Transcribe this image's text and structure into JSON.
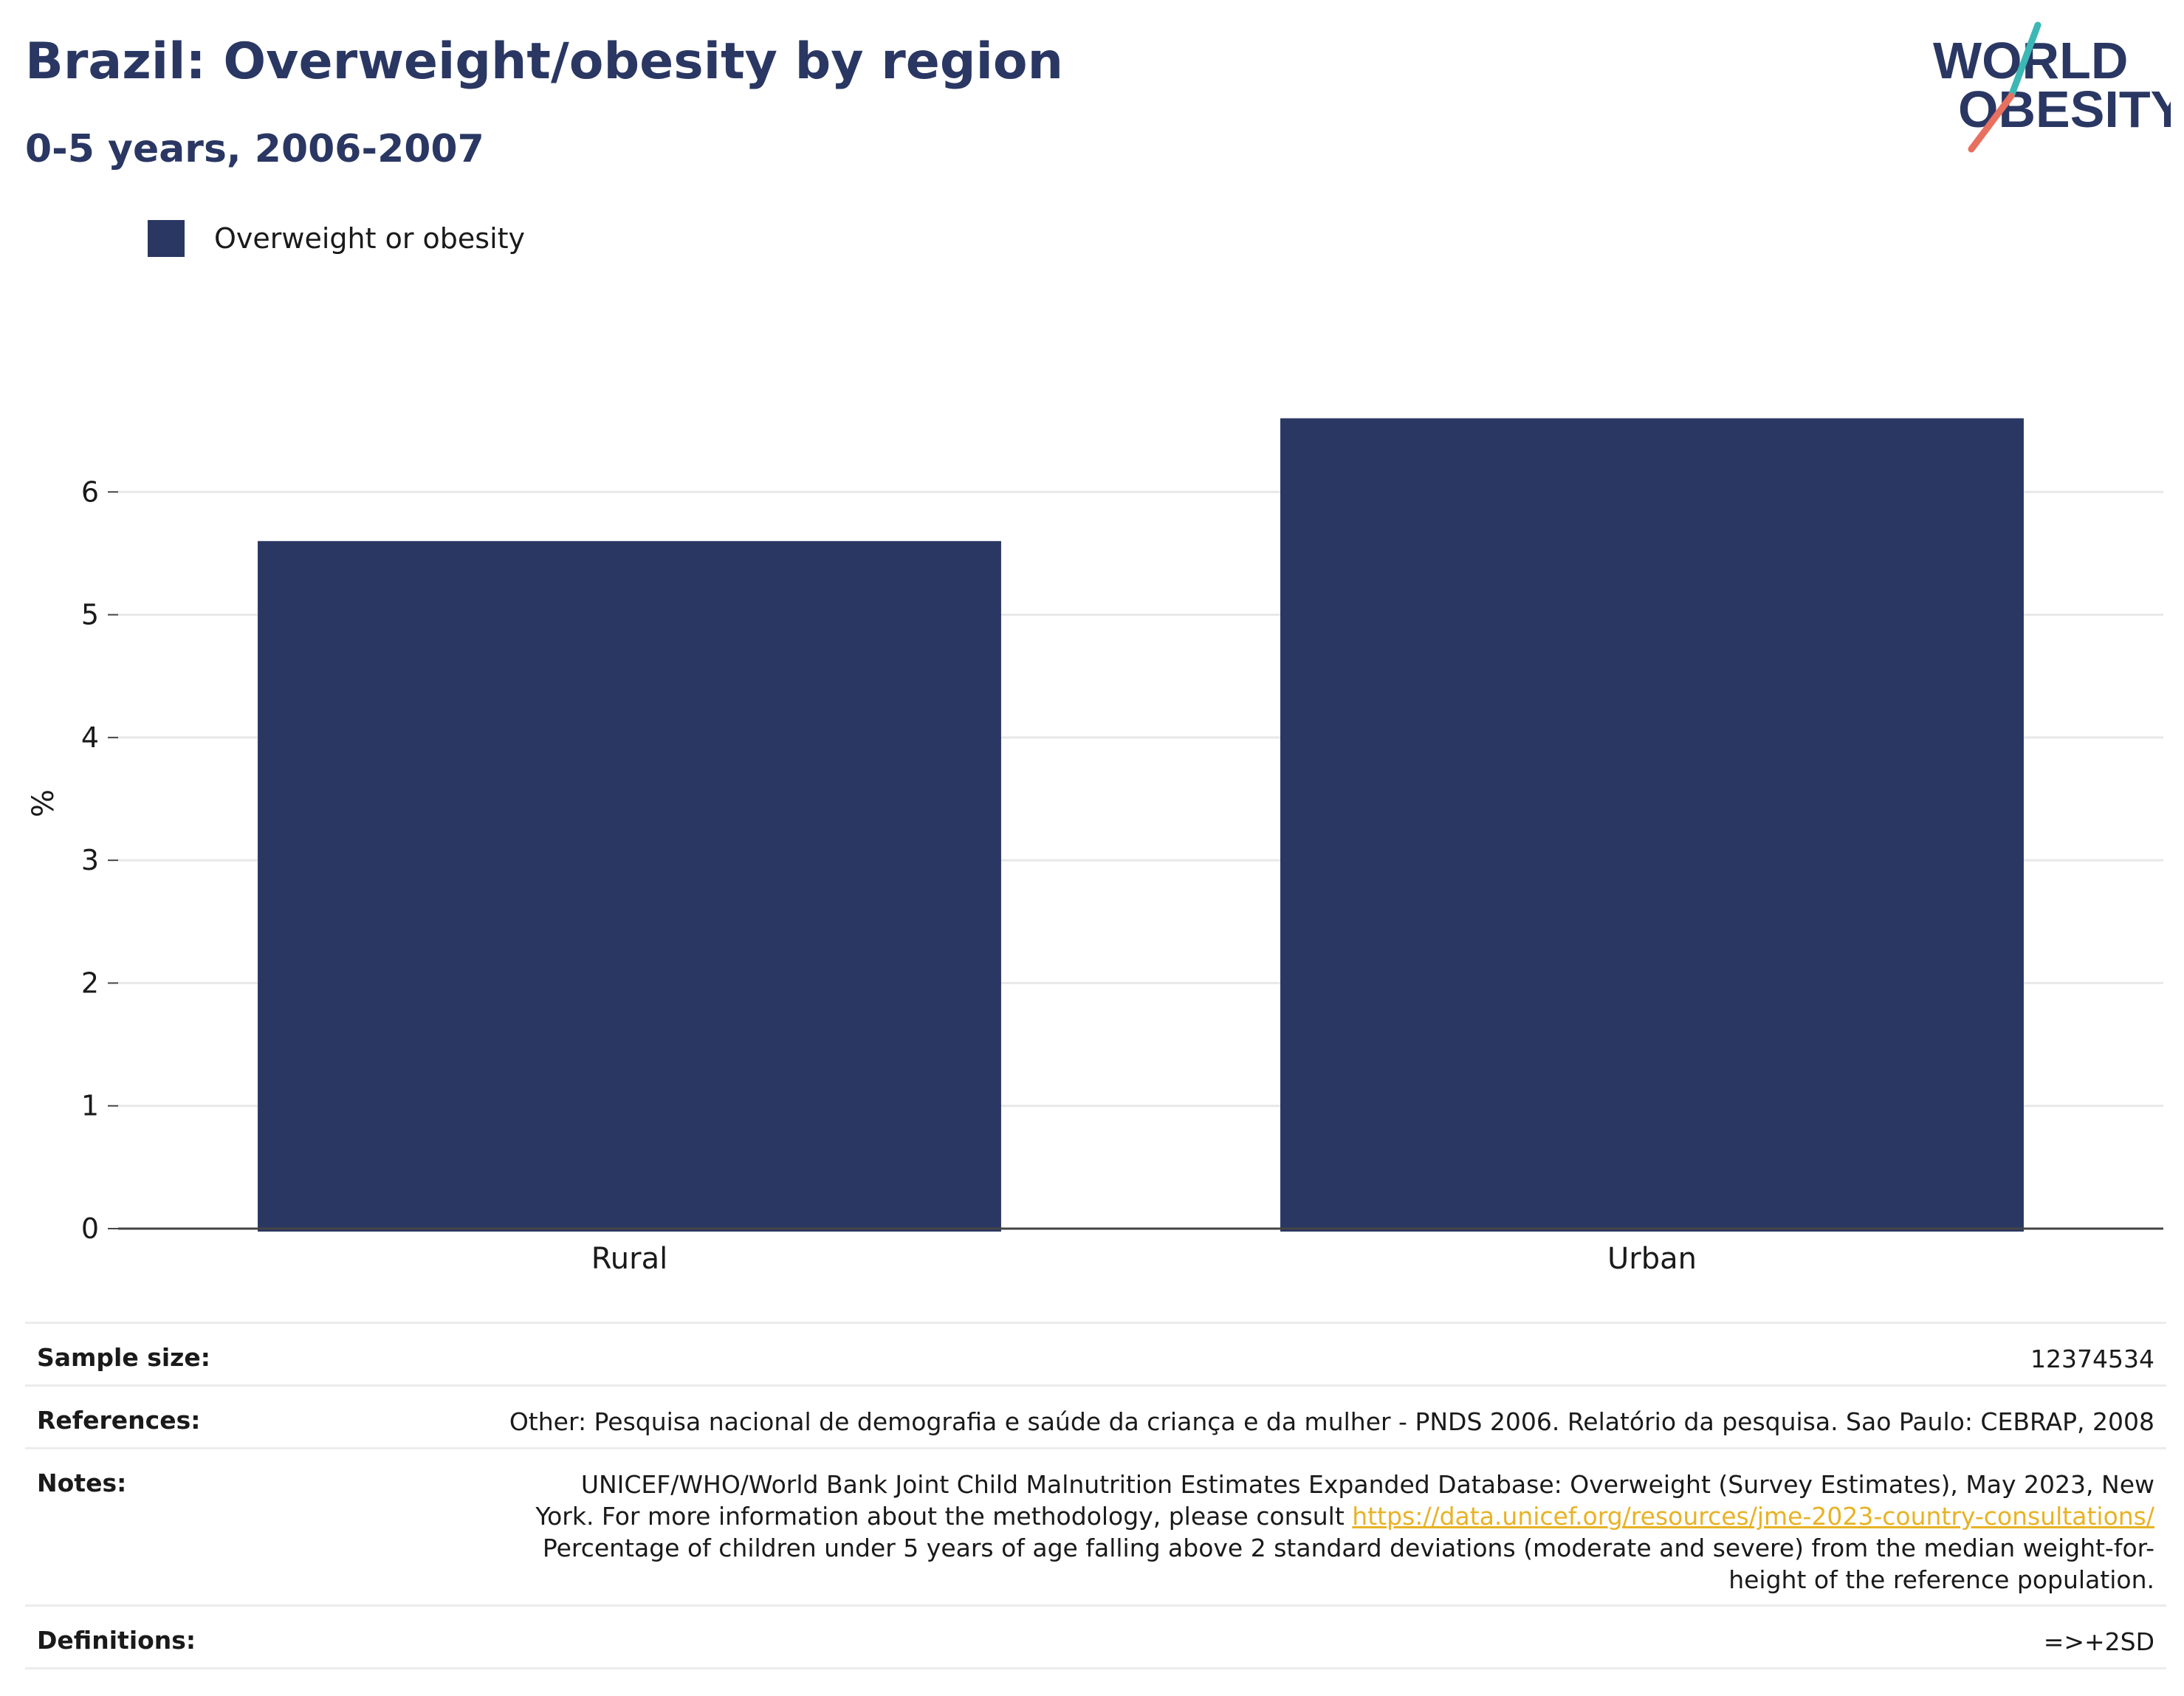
{
  "header": {
    "title": "Brazil: Overweight/obesity by region",
    "subtitle": "0-5 years, 2006-2007"
  },
  "logo": {
    "line1": "WORLD",
    "line2": "OBESITY",
    "slash_top_color": "#3bb8b5",
    "slash_bottom_color": "#e8705f",
    "text_color": "#2a3763"
  },
  "legend": {
    "label": "Overweight or obesity",
    "color": "#2a3763"
  },
  "chart_data": {
    "type": "bar",
    "categories": [
      "Rural",
      "Urban"
    ],
    "series": [
      {
        "name": "Overweight or obesity",
        "values": [
          5.6,
          6.6
        ],
        "color": "#2a3763"
      }
    ],
    "xlabel": "",
    "ylabel": "%",
    "ylim": [
      0,
      7
    ],
    "yticks": [
      "0",
      "1",
      "2",
      "3",
      "4",
      "5",
      "6"
    ],
    "grid": true,
    "legend_position": "top-left"
  },
  "meta": {
    "sample_size_label": "Sample size:",
    "sample_size_value": "12374534",
    "references_label": "References:",
    "references_value": "Other: Pesquisa nacional de demografia e saúde da criança e da mulher - PNDS 2006. Relatório da pesquisa. Sao Paulo: CEBRAP, 2008",
    "notes_label": "Notes:",
    "notes_line1": "UNICEF/WHO/World Bank Joint Child Malnutrition Estimates Expanded Database: Overweight (Survey Estimates), May 2023, New",
    "notes_line2_prefix": "York. For more information about the methodology, please consult",
    "notes_link": "https://data.unicef.org/resources/jme-2023-country-consultations/",
    "notes_line3": "Percentage of children under 5 years of age falling above 2 standard deviations (moderate and severe) from the median weight-for-",
    "notes_line4": "height of the reference population.",
    "definitions_label": "Definitions:",
    "definitions_value": "=>+2SD"
  }
}
